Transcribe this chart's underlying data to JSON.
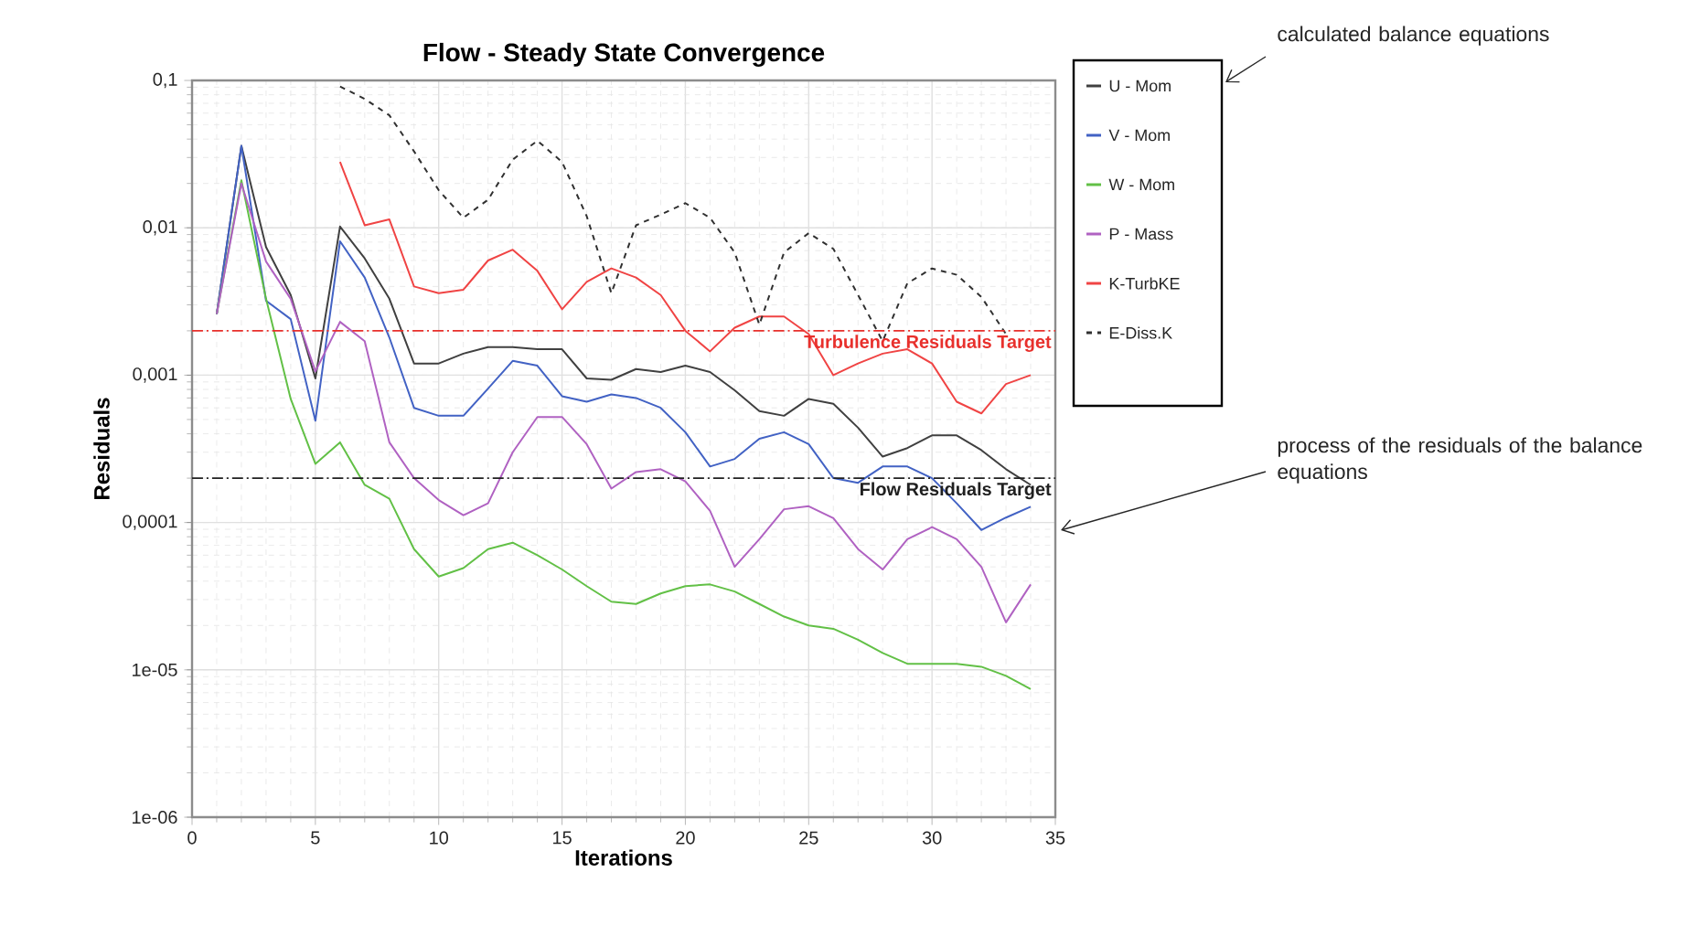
{
  "chart_data": {
    "type": "line",
    "title": "Flow - Steady State Convergence",
    "xlabel": "Iterations",
    "ylabel": "Residuals",
    "x": [
      1,
      2,
      3,
      4,
      5,
      6,
      7,
      8,
      9,
      10,
      11,
      12,
      13,
      14,
      15,
      16,
      17,
      18,
      19,
      20,
      21,
      22,
      23,
      24,
      25,
      26,
      27,
      28,
      29,
      30,
      31,
      32,
      33,
      34
    ],
    "series": [
      {
        "name": "U - Mom",
        "color": "#404040",
        "values": [
          0.0026,
          0.036,
          0.0074,
          0.0035,
          0.00095,
          0.0102,
          0.0062,
          0.0033,
          0.0012,
          0.0012,
          0.0014,
          0.00155,
          0.00155,
          0.0015,
          0.0015,
          0.00095,
          0.00093,
          0.0011,
          0.00105,
          0.00116,
          0.00105,
          0.00079,
          0.00057,
          0.00053,
          0.00069,
          0.00064,
          0.00044,
          0.00028,
          0.00032,
          0.00039,
          0.00039,
          0.00031,
          0.00023,
          0.00018
        ]
      },
      {
        "name": "V - Mom",
        "color": "#4262c4",
        "values": [
          0.0026,
          0.036,
          0.0032,
          0.0024,
          0.00049,
          0.0081,
          0.0046,
          0.0018,
          0.0006,
          0.00053,
          0.00053,
          0.00081,
          0.00125,
          0.00116,
          0.00072,
          0.00066,
          0.00074,
          0.0007,
          0.0006,
          0.00041,
          0.00024,
          0.00027,
          0.00037,
          0.00041,
          0.00034,
          0.0002,
          0.000186,
          0.00024,
          0.00024,
          0.0002,
          0.000135,
          8.9e-05,
          0.000108,
          0.000128
        ]
      },
      {
        "name": "W - Mom",
        "color": "#62c046",
        "values": [
          0.0026,
          0.021,
          0.0033,
          0.00069,
          0.00025,
          0.00035,
          0.00018,
          0.000145,
          6.6e-05,
          4.3e-05,
          4.9e-05,
          6.6e-05,
          7.3e-05,
          6e-05,
          4.8e-05,
          3.7e-05,
          2.9e-05,
          2.8e-05,
          3.3e-05,
          3.7e-05,
          3.8e-05,
          3.4e-05,
          2.8e-05,
          2.3e-05,
          2e-05,
          1.9e-05,
          1.6e-05,
          1.3e-05,
          1.1e-05,
          1.1e-05,
          1.1e-05,
          1.05e-05,
          9.1e-06,
          7.4e-06
        ]
      },
      {
        "name": "P - Mass",
        "color": "#b062c2",
        "values": [
          0.0026,
          0.02,
          0.0059,
          0.0033,
          0.00106,
          0.0023,
          0.0017,
          0.00035,
          0.0002,
          0.000142,
          0.000112,
          0.000135,
          0.0003,
          0.00052,
          0.00052,
          0.00034,
          0.00017,
          0.00022,
          0.00023,
          0.00019,
          0.00012,
          5e-05,
          7.7e-05,
          0.000123,
          0.000129,
          0.000107,
          6.6e-05,
          4.8e-05,
          7.7e-05,
          9.3e-05,
          7.7e-05,
          5e-05,
          2.1e-05,
          3.8e-05
        ]
      },
      {
        "name": "K-TurbKE",
        "color": "#f04444",
        "values": [
          null,
          null,
          null,
          null,
          null,
          0.028,
          0.0104,
          0.0114,
          0.004,
          0.0036,
          0.0038,
          0.006,
          0.0071,
          0.0051,
          0.0028,
          0.0043,
          0.0053,
          0.0046,
          0.0035,
          0.002,
          0.00145,
          0.0021,
          0.0025,
          0.0025,
          0.0019,
          0.001,
          0.0012,
          0.0014,
          0.0015,
          0.0012,
          0.00066,
          0.00055,
          0.00087,
          0.001
        ]
      },
      {
        "name": "E-Diss.K",
        "color": "#303030",
        "line_style": "dashed",
        "values": [
          null,
          null,
          null,
          null,
          null,
          0.091,
          0.075,
          0.058,
          0.033,
          0.018,
          0.0117,
          0.0155,
          0.029,
          0.039,
          0.028,
          0.012,
          0.0036,
          0.0104,
          0.0123,
          0.0147,
          0.0117,
          0.0068,
          0.0022,
          0.0068,
          0.0092,
          0.0072,
          0.0035,
          0.0017,
          0.0042,
          0.0053,
          0.0048,
          0.0034,
          0.0019,
          null
        ]
      }
    ],
    "xlim": [
      0,
      35
    ],
    "xticks": [
      0,
      5,
      10,
      15,
      20,
      25,
      30,
      35
    ],
    "ylim": [
      1e-06,
      0.1
    ],
    "yticks": [
      {
        "value": 1e-06,
        "label": "1e-06"
      },
      {
        "value": 1e-05,
        "label": "1e-05"
      },
      {
        "value": 0.0001,
        "label": "0,0001"
      },
      {
        "value": 0.001,
        "label": "0,001"
      },
      {
        "value": 0.01,
        "label": "0,01"
      },
      {
        "value": 0.1,
        "label": "0,1"
      }
    ],
    "log": true,
    "grid": true,
    "legend": "top right",
    "ref_lines": [
      {
        "axis": "y",
        "value": 0.002,
        "label": "Turbulence Residuals Target",
        "color": "#e8302c"
      },
      {
        "axis": "y",
        "value": 0.0002,
        "label": "Flow Residuals Target",
        "color": "#202020"
      }
    ],
    "annotations": [
      "calculated balance equations",
      "process of the residuals of the balance equations"
    ]
  }
}
